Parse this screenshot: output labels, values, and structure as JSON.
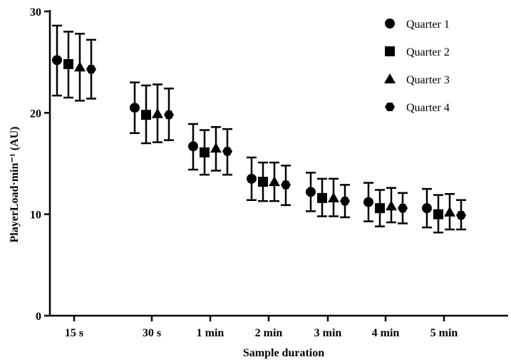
{
  "chart_data": {
    "type": "scatter",
    "categories": [
      "15 s",
      "30 s",
      "1 min",
      "2 min",
      "3 min",
      "4 min",
      "5 min"
    ],
    "xlabel": "Sample duration",
    "ylabel": "PlayerLoad·min⁻¹ (AU)",
    "ylim": [
      0,
      30
    ],
    "yticks": [
      0,
      10,
      20,
      30
    ],
    "grid": false,
    "legend_position": "top-right",
    "error_bars": true,
    "series": [
      {
        "name": "Quarter 1",
        "marker": "circle",
        "values": [
          25.2,
          20.5,
          16.7,
          13.5,
          12.2,
          11.2,
          10.6
        ],
        "lower": [
          21.7,
          18.0,
          14.4,
          11.4,
          10.3,
          9.3,
          8.7
        ],
        "upper": [
          28.6,
          23.0,
          18.9,
          15.6,
          14.1,
          13.1,
          12.5
        ]
      },
      {
        "name": "Quarter 2",
        "marker": "square",
        "values": [
          24.8,
          19.8,
          16.1,
          13.2,
          11.6,
          10.6,
          10.0
        ],
        "lower": [
          21.5,
          17.0,
          13.9,
          11.3,
          9.8,
          8.8,
          8.2
        ],
        "upper": [
          28.0,
          22.7,
          18.3,
          15.1,
          13.5,
          12.4,
          11.9
        ]
      },
      {
        "name": "Quarter 3",
        "marker": "triangle",
        "values": [
          24.5,
          19.9,
          16.5,
          13.2,
          11.6,
          10.8,
          10.2
        ],
        "lower": [
          21.2,
          17.1,
          14.3,
          11.3,
          9.8,
          9.2,
          8.5
        ],
        "upper": [
          27.8,
          22.8,
          18.6,
          15.1,
          13.5,
          12.6,
          12.0
        ]
      },
      {
        "name": "Quarter 4",
        "marker": "hexagon",
        "values": [
          24.3,
          19.8,
          16.2,
          12.9,
          11.3,
          10.6,
          9.9
        ],
        "lower": [
          21.4,
          17.3,
          13.9,
          10.9,
          9.7,
          9.1,
          8.5
        ],
        "upper": [
          27.2,
          22.4,
          18.4,
          14.8,
          12.9,
          12.1,
          11.4
        ]
      }
    ]
  }
}
